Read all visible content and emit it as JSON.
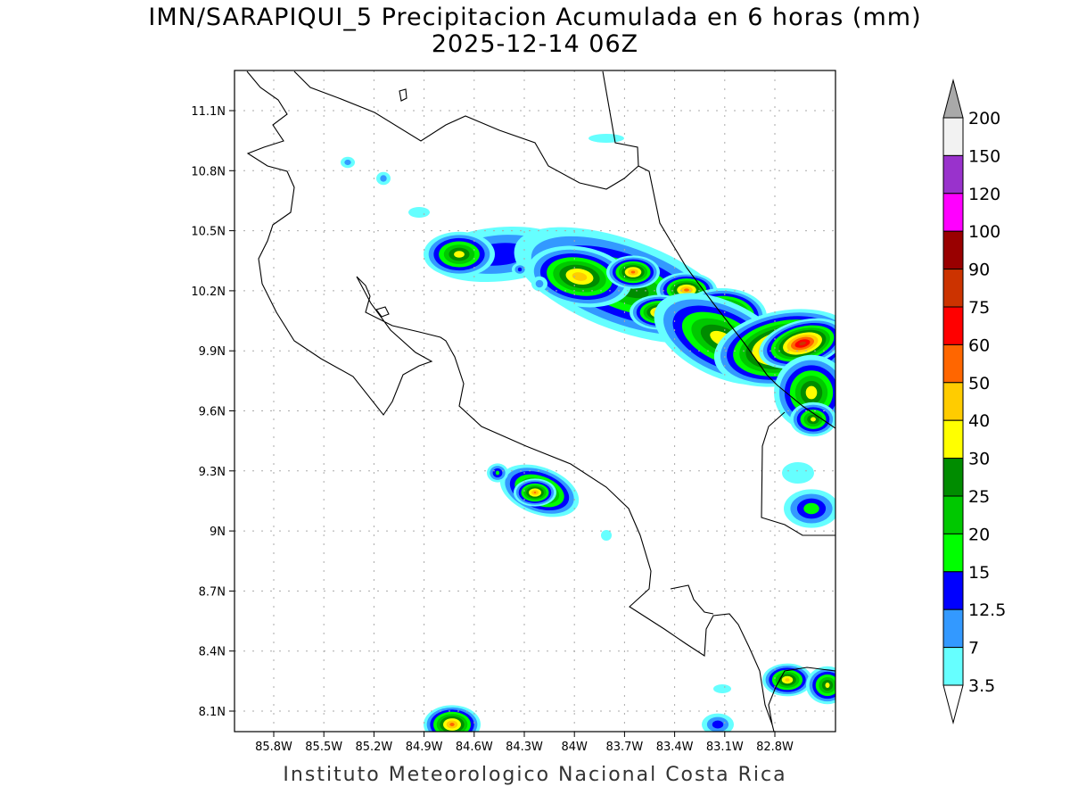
{
  "title": {
    "line1": "IMN/SARAPIQUI_5 Precipitacion Acumulada en 6 horas (mm)",
    "line2": "2025-12-14 06Z"
  },
  "footer": "Instituto Meteorologico Nacional Costa Rica",
  "map": {
    "lon_ticks": [
      "85.8W",
      "85.5W",
      "85.2W",
      "84.9W",
      "84.6W",
      "84.3W",
      "84W",
      "83.7W",
      "83.4W",
      "83.1W",
      "82.8W"
    ],
    "lat_ticks": [
      "11.1N",
      "10.8N",
      "10.5N",
      "10.2N",
      "9.9N",
      "9.6N",
      "9.3N",
      "9N",
      "8.7N",
      "8.4N",
      "8.1N"
    ],
    "lon_values": [
      -85.8,
      -85.5,
      -85.2,
      -84.9,
      -84.6,
      -84.3,
      -84.0,
      -83.7,
      -83.4,
      -83.1,
      -82.8
    ],
    "lat_values": [
      11.1,
      10.8,
      10.5,
      10.2,
      9.9,
      9.6,
      9.3,
      9.0,
      8.7,
      8.4,
      8.1
    ]
  },
  "colorbar": {
    "labels": [
      "200",
      "150",
      "120",
      "100",
      "90",
      "75",
      "60",
      "50",
      "40",
      "30",
      "25",
      "20",
      "15",
      "12.5",
      "7",
      "3.5"
    ],
    "colors": [
      "#f2f2f2",
      "#9932cc",
      "#ff00ff",
      "#990000",
      "#cc3300",
      "#ff0000",
      "#ff6600",
      "#ffcc00",
      "#ffff00",
      "#008c00",
      "#00c800",
      "#00ff00",
      "#0000ff",
      "#3399ff",
      "#66ffff"
    ],
    "over_color": "#a9a9a9",
    "under_color": "#ffffff"
  }
}
